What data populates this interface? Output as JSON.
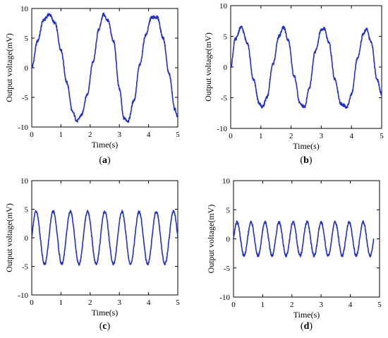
{
  "chart_data": [
    {
      "type": "line",
      "panel": "(a)",
      "panel_letter": "a",
      "xlabel": "Time(s)",
      "ylabel": "Output voltage(mV)",
      "xlim": [
        0,
        5
      ],
      "ylim": [
        -10,
        10
      ],
      "xticks": [
        0,
        1,
        2,
        3,
        4,
        5
      ],
      "yticks": [
        -10,
        -5,
        0,
        5,
        10
      ],
      "grid": false,
      "series": [
        {
          "color": "#1f2fd6",
          "x": [
            0,
            0.2,
            0.4,
            0.6,
            0.8,
            1.0,
            1.2,
            1.4,
            1.55,
            1.7,
            1.9,
            2.1,
            2.3,
            2.45,
            2.6,
            2.8,
            3.0,
            3.15,
            3.3,
            3.5,
            3.7,
            3.9,
            4.1,
            4.3,
            4.5,
            4.7,
            4.9,
            5.0
          ],
          "y": [
            0,
            4.5,
            8.0,
            9.0,
            7.5,
            3.0,
            -2.5,
            -7.5,
            -9.0,
            -8.0,
            -4.5,
            1.0,
            6.5,
            9.0,
            8.0,
            4.5,
            -3.5,
            -8.5,
            -9.0,
            -5.5,
            0.5,
            5.5,
            8.5,
            8.5,
            5.0,
            -1.0,
            -7.0,
            -8.5
          ]
        }
      ]
    },
    {
      "type": "line",
      "panel": "(b)",
      "panel_letter": "b",
      "xlabel": "Time(s)",
      "ylabel": "Output voltage(mV)",
      "xlim": [
        0,
        5
      ],
      "ylim": [
        -10,
        10
      ],
      "xticks": [
        0,
        1,
        2,
        3,
        4,
        5
      ],
      "yticks": [
        -10,
        -5,
        0,
        5,
        10
      ],
      "grid": false,
      "series": [
        {
          "color": "#1f2fd6",
          "x": [
            0,
            0.15,
            0.35,
            0.55,
            0.75,
            0.95,
            1.05,
            1.2,
            1.4,
            1.6,
            1.75,
            1.9,
            2.1,
            2.3,
            2.45,
            2.6,
            2.8,
            3.0,
            3.1,
            3.25,
            3.45,
            3.65,
            3.85,
            4.0,
            4.2,
            4.4,
            4.5,
            4.65,
            4.85,
            5.0
          ],
          "y": [
            0,
            4.5,
            6.5,
            4.0,
            -2.0,
            -6.0,
            -6.5,
            -5.0,
            0.5,
            5.0,
            6.5,
            4.5,
            -1.5,
            -6.0,
            -6.5,
            -3.5,
            2.5,
            6.0,
            6.3,
            4.0,
            -2.0,
            -6.0,
            -6.5,
            -4.5,
            1.5,
            5.5,
            6.2,
            4.0,
            -2.0,
            -4.5
          ]
        }
      ]
    },
    {
      "type": "line",
      "panel": "(c)",
      "panel_letter": "c",
      "xlabel": "Time(s)",
      "ylabel": "Output voltage(mV)",
      "xlim": [
        0,
        5
      ],
      "ylim": [
        -10,
        10
      ],
      "xticks": [
        0,
        1,
        2,
        3,
        4,
        5
      ],
      "yticks": [
        -10,
        -5,
        0,
        5,
        10
      ],
      "grid": false,
      "series": [
        {
          "color": "#1f2fd6",
          "waveform": "sine",
          "amplitude": 4.6,
          "cycles": 8.5,
          "x_start": 0,
          "x_end": 5
        }
      ]
    },
    {
      "type": "line",
      "panel": "(d)",
      "panel_letter": "d",
      "xlabel": "Time(s)",
      "ylabel": "Output voltage(mV)",
      "xlim": [
        0,
        5
      ],
      "ylim": [
        -10,
        10
      ],
      "xticks": [
        0,
        1,
        2,
        3,
        4,
        5
      ],
      "yticks": [
        -10,
        -5,
        0,
        5,
        10
      ],
      "grid": false,
      "series": [
        {
          "color": "#1f2fd6",
          "waveform": "sine",
          "amplitude": 2.9,
          "cycles": 10,
          "x_start": 0,
          "x_end": 4.8
        }
      ]
    }
  ]
}
